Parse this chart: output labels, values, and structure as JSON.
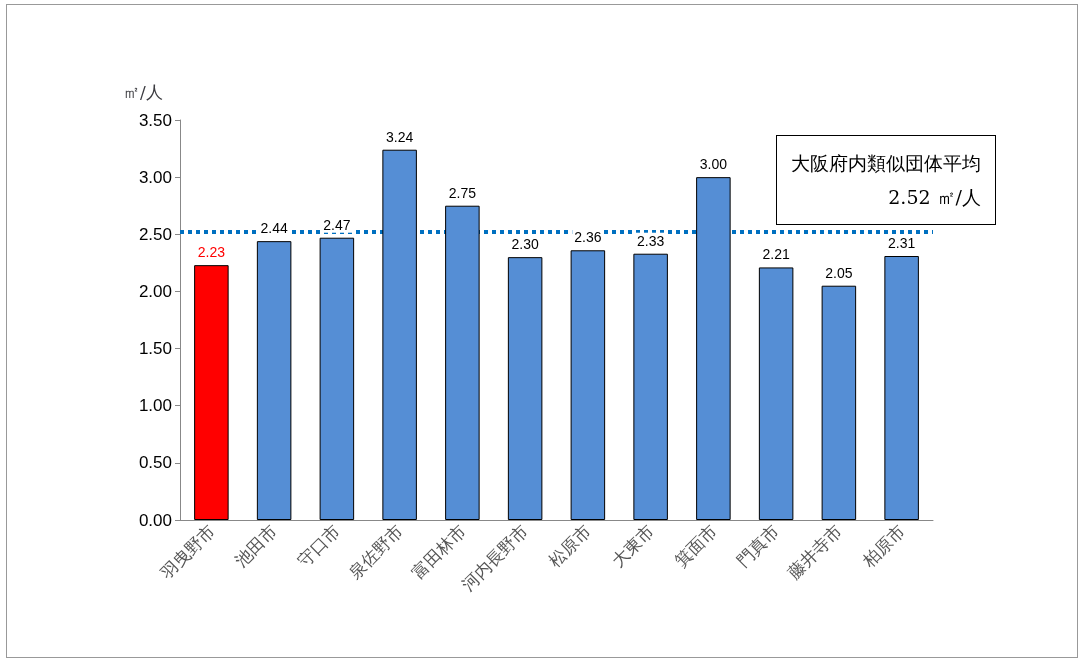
{
  "chart_data": {
    "type": "bar",
    "ylabel": "㎡/人",
    "categories": [
      "羽曳野市",
      "池田市",
      "守口市",
      "泉佐野市",
      "富田林市",
      "河内長野市",
      "松原市",
      "大東市",
      "箕面市",
      "門真市",
      "藤井寺市",
      "柏原市"
    ],
    "values": [
      2.23,
      2.44,
      2.47,
      3.24,
      2.75,
      2.3,
      2.36,
      2.33,
      3.0,
      2.21,
      2.05,
      2.31
    ],
    "value_labels": [
      "2.23",
      "2.44",
      "2.47",
      "3.24",
      "2.75",
      "2.30",
      "2.36",
      "2.33",
      "3.00",
      "2.21",
      "2.05",
      "2.31"
    ],
    "colors": [
      "#ff0000",
      "#558ed5",
      "#558ed5",
      "#558ed5",
      "#558ed5",
      "#558ed5",
      "#558ed5",
      "#558ed5",
      "#558ed5",
      "#558ed5",
      "#558ed5",
      "#558ed5"
    ],
    "ylim": [
      0,
      3.5
    ],
    "yticks": [
      {
        "value": 0,
        "label": "0.00"
      },
      {
        "value": 0.5,
        "label": "0.50"
      },
      {
        "value": 1,
        "label": "1.00"
      },
      {
        "value": 1.5,
        "label": "1.50"
      },
      {
        "value": 2,
        "label": "2.00"
      },
      {
        "value": 2.5,
        "label": "2.50"
      },
      {
        "value": 3,
        "label": "3.00"
      },
      {
        "value": 3.5,
        "label": "3.50"
      }
    ],
    "grid": false,
    "ref_lines": [
      {
        "axis": "y",
        "value": 2.52,
        "label": "大阪府内類似団体平均\n2.52 ㎡/人",
        "color": "#0070c0",
        "line_style": "dotted"
      }
    ]
  }
}
